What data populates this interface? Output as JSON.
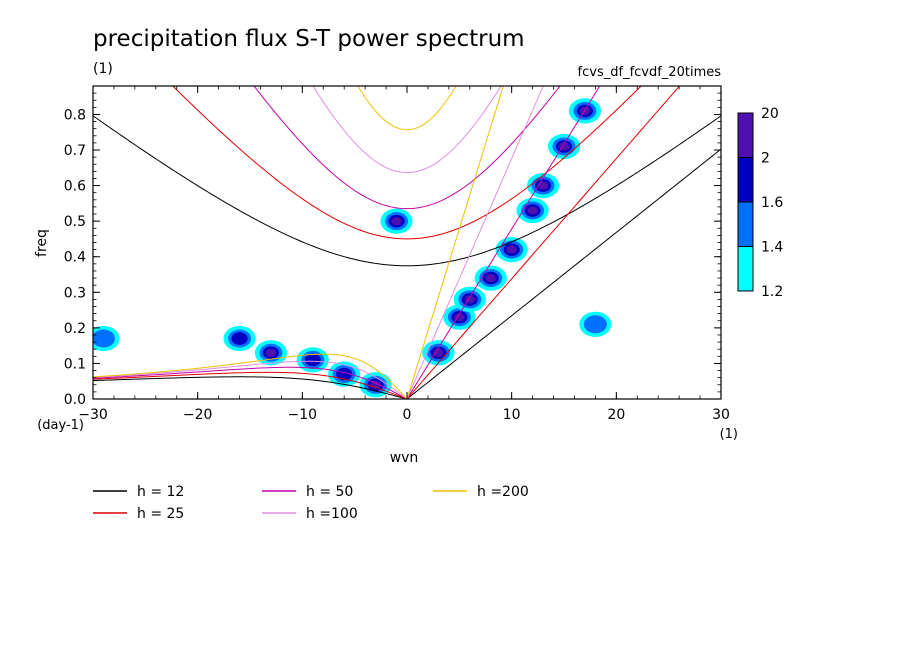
{
  "chart_data": {
    "type": "heatmap",
    "title": "precipitation flux S-T power spectrum",
    "subtitle_left": "(1)",
    "subtitle_right": "fcvs_df_fcvdf_20times",
    "xlabel": "wvn",
    "ylabel": "freq",
    "x_unit": "(1)",
    "y_unit": "(day-1)",
    "xlim": [
      -30,
      30
    ],
    "ylim": [
      0,
      0.88
    ],
    "x_ticks": [
      -30,
      -20,
      -10,
      0,
      10,
      20,
      30
    ],
    "y_ticks": [
      0.0,
      0.1,
      0.2,
      0.3,
      0.4,
      0.5,
      0.6,
      0.7,
      0.8
    ],
    "colorbar": {
      "levels": [
        "1.2",
        "1.4",
        "1.6",
        "2",
        "20"
      ],
      "colors": [
        "#00ffff",
        "#0070ff",
        "#0000c0",
        "#5010b0"
      ]
    },
    "dispersion_curves": [
      {
        "label": "h = 12",
        "h": 12,
        "color": "#000000"
      },
      {
        "label": "h = 25",
        "h": 25,
        "color": "#e00000"
      },
      {
        "label": "h = 50",
        "h": 50,
        "color": "#c800a8"
      },
      {
        "label": "h =100",
        "h": 100,
        "color": "#e090e0"
      },
      {
        "label": "h =200",
        "h": 200,
        "color": "#f0c000"
      }
    ],
    "spectral_peaks": [
      {
        "wvn": 3,
        "freq": 0.13,
        "level": 4
      },
      {
        "wvn": 5,
        "freq": 0.23,
        "level": 4
      },
      {
        "wvn": 6,
        "freq": 0.28,
        "level": 4
      },
      {
        "wvn": 8,
        "freq": 0.34,
        "level": 4
      },
      {
        "wvn": 10,
        "freq": 0.42,
        "level": 4
      },
      {
        "wvn": 12,
        "freq": 0.53,
        "level": 4
      },
      {
        "wvn": 13,
        "freq": 0.6,
        "level": 4
      },
      {
        "wvn": 15,
        "freq": 0.71,
        "level": 4
      },
      {
        "wvn": 17,
        "freq": 0.81,
        "level": 4
      },
      {
        "wvn": -13,
        "freq": 0.13,
        "level": 4
      },
      {
        "wvn": -9,
        "freq": 0.11,
        "level": 3
      },
      {
        "wvn": -6,
        "freq": 0.07,
        "level": 3
      },
      {
        "wvn": -3,
        "freq": 0.04,
        "level": 4
      },
      {
        "wvn": -1,
        "freq": 0.5,
        "level": 4
      },
      {
        "wvn": -16,
        "freq": 0.17,
        "level": 3
      },
      {
        "wvn": -29,
        "freq": 0.17,
        "level": 2
      },
      {
        "wvn": 18,
        "freq": 0.21,
        "level": 2
      }
    ]
  }
}
